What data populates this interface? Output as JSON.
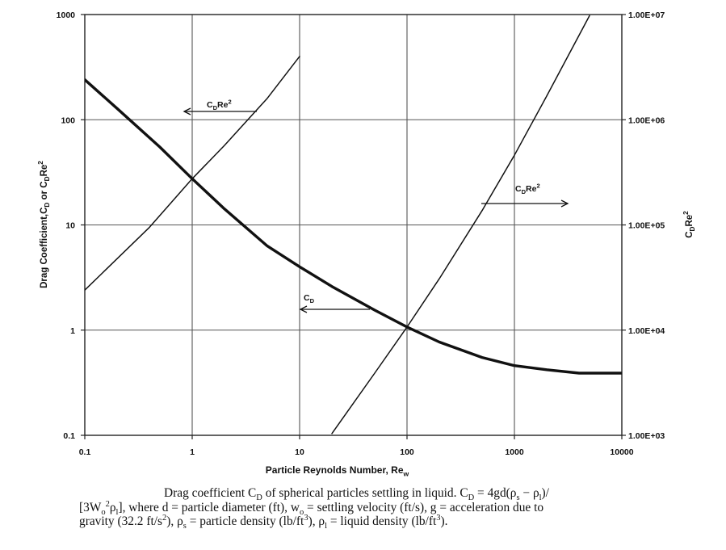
{
  "chart_data": {
    "type": "line",
    "x_scale": "log",
    "y_scale": "log",
    "y2_scale": "log",
    "xlim": [
      0.1,
      10000
    ],
    "ylim": [
      0.1,
      1000
    ],
    "y2lim": [
      1000,
      10000000
    ],
    "grid": true,
    "xlabel": "Particle Reynolds Number, Re",
    "xlabel_sub": "w",
    "ylabel": "Drag Coefficient,C",
    "ylabel_sub": "D",
    "ylabel_mid": " or C",
    "ylabel_sub2": "D",
    "ylabel_tail": "Re",
    "ylabel_sup": "2",
    "y2label": "C",
    "y2label_sub": "D",
    "y2label_tail": "Re",
    "y2label_sup": "2",
    "x_ticks": [
      "0.1",
      "1",
      "10",
      "100",
      "1000",
      "10000"
    ],
    "y_ticks": [
      "0.1",
      "1",
      "10",
      "100",
      "1000"
    ],
    "y2_ticks": [
      "1.00E+03",
      "1.00E+04",
      "1.00E+05",
      "1.00E+06",
      "1.00E+07"
    ],
    "series": [
      {
        "label": "CD",
        "axis": "left",
        "x": [
          0.1,
          0.2,
          0.5,
          1,
          2,
          5,
          10,
          20,
          50,
          100,
          200,
          500,
          1000,
          2000,
          4000,
          5000,
          10000
        ],
        "y": [
          240,
          128,
          55,
          27.5,
          14.2,
          6.3,
          4.0,
          2.6,
          1.55,
          1.07,
          0.77,
          0.55,
          0.46,
          0.42,
          0.39,
          0.39,
          0.39
        ]
      },
      {
        "label": "CDRe2 (left axis)",
        "axis": "left",
        "x": [
          0.1,
          0.4,
          1,
          2,
          5,
          10
        ],
        "y": [
          2.4,
          9.5,
          27.5,
          57,
          160,
          400
        ]
      },
      {
        "label": "CDRe2 (right axis)",
        "axis": "right",
        "x": [
          20,
          50,
          100,
          200,
          500,
          1000,
          2000,
          5000
        ],
        "y2": [
          1040,
          3900,
          10700,
          30800,
          137000,
          460000,
          1680000,
          9750000
        ]
      }
    ],
    "annotations": {
      "cdre2_left": {
        "base": "C",
        "sub": "D",
        "tail": "Re",
        "sup": "2"
      },
      "cdre2_right": {
        "base": "C",
        "sub": "D",
        "tail": "Re",
        "sup": "2"
      },
      "cd": {
        "base": "C",
        "sub": "D"
      }
    }
  },
  "caption": {
    "line1": "Drag coefficient C_D of spherical particles settling in liquid. C_D = 4gd(ρ_s − ρ_l)/",
    "line2": "[3W_o^2ρ_l], where d = particle diameter (ft), w_o = settling velocity (ft/s), g = acceleration due to",
    "line3": "gravity (32.2 ft/s^2), ρ_s = particle density (lb/ft^3), ρ_l = liquid density (lb/ft^3)."
  }
}
